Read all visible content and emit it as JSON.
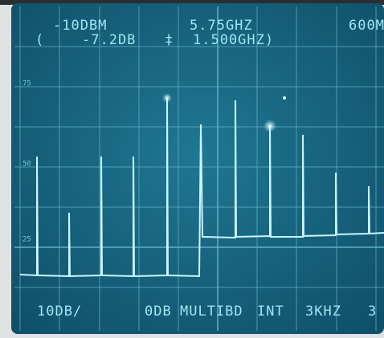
{
  "readout": {
    "reference_level": "-10DBM",
    "center_frequency": "5.75GHZ",
    "span_partial": "600M",
    "open_paren": "(",
    "marker_level": "-7.2DB",
    "marker_symbol": "‡",
    "marker_frequency": "1.500GHZ)"
  },
  "graticule_labels": [
    75,
    50,
    25
  ],
  "settings": {
    "scale": "10DB/",
    "attenuation": "0DB",
    "mode": "MULTIBD",
    "reference": "INT",
    "bandwidth": "3KHZ",
    "extra": "3"
  }
}
